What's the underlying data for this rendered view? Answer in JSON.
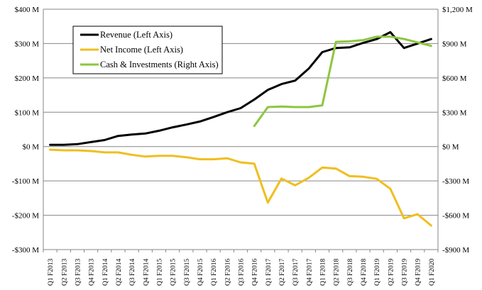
{
  "chart_data": {
    "type": "line",
    "categories": [
      "Q1 F2013",
      "Q2 F2013",
      "Q3 F2013",
      "Q4 F2013",
      "Q1 F2014",
      "Q2 F2014",
      "Q3 F2014",
      "Q4 F2014",
      "Q1 F2015",
      "Q2 F2015",
      "Q3 F2015",
      "Q4 F2015",
      "Q1 F2016",
      "Q2 F2016",
      "Q3 F2016",
      "Q4 F2016",
      "Q1 F2017",
      "Q2 F2017",
      "Q3 F2017",
      "Q4 F2017",
      "Q1 F2018",
      "Q2 F2018",
      "Q3 F2018",
      "Q4 F2018",
      "Q1 F2019",
      "Q2 F2019",
      "Q3 F2019",
      "Q4 F2019",
      "Q1 F2020"
    ],
    "left_axis": {
      "ylim": [
        -300,
        400
      ],
      "ticks": [
        400,
        300,
        200,
        100,
        0,
        -100,
        -200,
        -300
      ],
      "tick_labels": [
        "$400 M",
        "$300 M",
        "$200 M",
        "$100 M",
        "$0 M",
        "-$100 M",
        "-$200 M",
        "-$300 M"
      ]
    },
    "right_axis": {
      "ylim": [
        -900,
        1200
      ],
      "ticks": [
        1200,
        900,
        600,
        300,
        0,
        -300,
        -600,
        -900
      ],
      "tick_labels": [
        "$1,200 M",
        "$900 M",
        "$600 M",
        "$300 M",
        "$0 M",
        "-$300 M",
        "-$600 M",
        "-$900 M"
      ]
    },
    "grid": true,
    "legend_placement": "top-left",
    "series": [
      {
        "name": "Revenue (Left Axis)",
        "axis": "left",
        "color": "#000000",
        "values": [
          5,
          5,
          7,
          13,
          19,
          31,
          35,
          38,
          46,
          56,
          64,
          73,
          86,
          100,
          112,
          137,
          165,
          182,
          192,
          227,
          275,
          287,
          289,
          302,
          313,
          333,
          287,
          300,
          313
        ]
      },
      {
        "name": "Net Income (Left Axis)",
        "axis": "left",
        "color": "#F0BE1E",
        "values": [
          -9,
          -11,
          -11,
          -13,
          -17,
          -17,
          -24,
          -29,
          -27,
          -27,
          -31,
          -37,
          -37,
          -34,
          -46,
          -50,
          -163,
          -93,
          -113,
          -91,
          -61,
          -64,
          -86,
          -88,
          -94,
          -123,
          -209,
          -197,
          -230
        ]
      },
      {
        "name": "Cash & Investments (Right Axis)",
        "axis": "right",
        "color": "#8DC63F",
        "values": [
          null,
          null,
          null,
          null,
          null,
          null,
          null,
          null,
          null,
          null,
          null,
          null,
          null,
          null,
          null,
          180,
          345,
          350,
          345,
          345,
          360,
          915,
          920,
          930,
          960,
          960,
          940,
          910,
          880
        ]
      }
    ]
  }
}
